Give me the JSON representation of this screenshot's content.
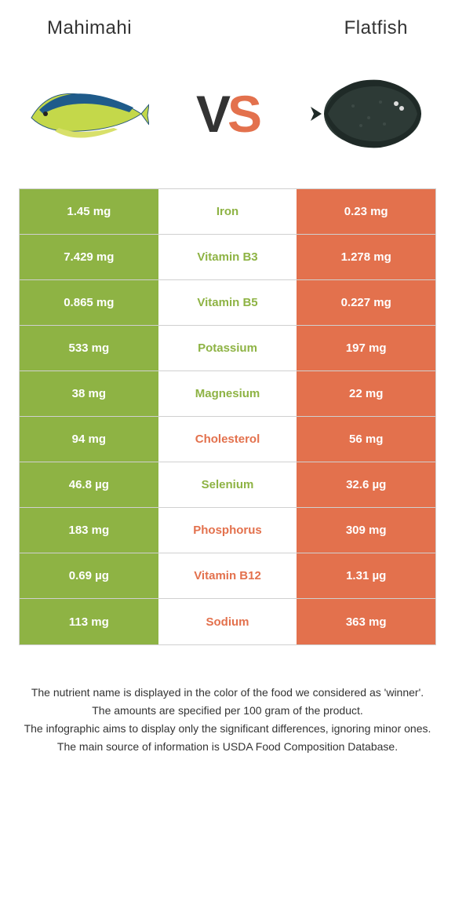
{
  "header": {
    "left_title": "Mahimahi",
    "right_title": "Flatfish"
  },
  "vs": {
    "v_text": "V",
    "s_text": "S",
    "v_color": "#333333",
    "s_color": "#e3714d"
  },
  "colors": {
    "left": "#8eb344",
    "right": "#e3714d",
    "mid_bg": "#ffffff",
    "border": "#d0d0d0",
    "text_on_color": "#ffffff"
  },
  "table": {
    "rows": [
      {
        "left": "1.45 mg",
        "label": "Iron",
        "right": "0.23 mg",
        "winner": "left"
      },
      {
        "left": "7.429 mg",
        "label": "Vitamin B3",
        "right": "1.278 mg",
        "winner": "left"
      },
      {
        "left": "0.865 mg",
        "label": "Vitamin B5",
        "right": "0.227 mg",
        "winner": "left"
      },
      {
        "left": "533 mg",
        "label": "Potassium",
        "right": "197 mg",
        "winner": "left"
      },
      {
        "left": "38 mg",
        "label": "Magnesium",
        "right": "22 mg",
        "winner": "left"
      },
      {
        "left": "94 mg",
        "label": "Cholesterol",
        "right": "56 mg",
        "winner": "right"
      },
      {
        "left": "46.8 µg",
        "label": "Selenium",
        "right": "32.6 µg",
        "winner": "left"
      },
      {
        "left": "183 mg",
        "label": "Phosphorus",
        "right": "309 mg",
        "winner": "right"
      },
      {
        "left": "0.69 µg",
        "label": "Vitamin B12",
        "right": "1.31 µg",
        "winner": "right"
      },
      {
        "left": "113 mg",
        "label": "Sodium",
        "right": "363 mg",
        "winner": "right"
      }
    ]
  },
  "footer": {
    "lines": [
      "The nutrient name is displayed in the color of the food we considered as 'winner'.",
      "The amounts are specified per 100 gram of the product.",
      "The infographic aims to display only the significant differences, ignoring minor ones.",
      "The main source of information is USDA Food Composition Database."
    ]
  }
}
